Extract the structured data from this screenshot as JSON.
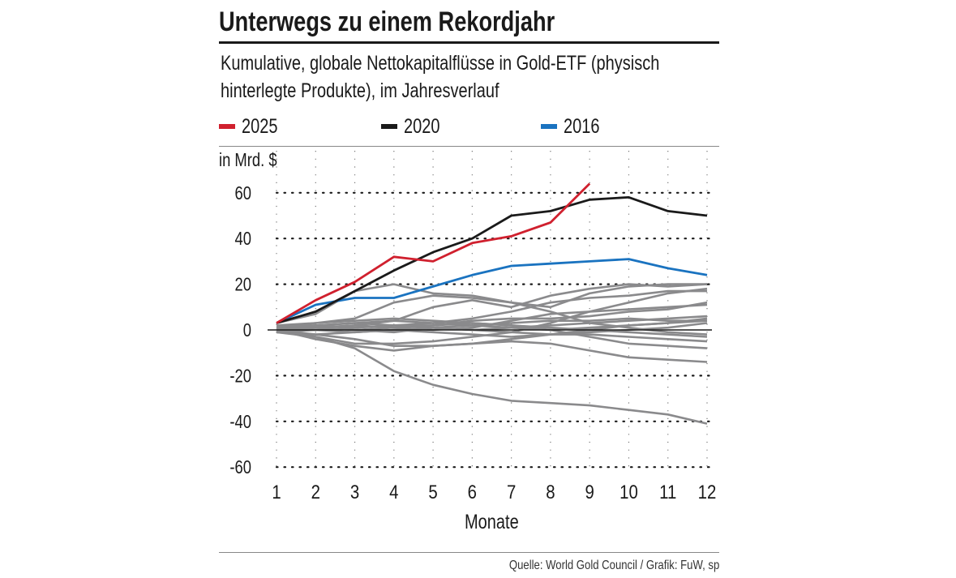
{
  "colors": {
    "2025": "#d0202e",
    "2020": "#1a1a1a",
    "2016": "#1a73c0",
    "other": "#8a8a8c"
  },
  "chart_data": {
    "type": "line",
    "title": "Unterwegs zu einem Rekordjahr",
    "subtitle_line1": "Kumulative, globale Nettokapitalflüsse in Gold-ETF (physisch",
    "subtitle_line2": "hinterlegte Produkte), im Jahresverlauf",
    "ylabel": "in Mrd. $",
    "xlabel": "Monate",
    "x": [
      1,
      2,
      3,
      4,
      5,
      6,
      7,
      8,
      9,
      10,
      11,
      12
    ],
    "xticks": [
      "1",
      "2",
      "3",
      "4",
      "5",
      "6",
      "7",
      "8",
      "9",
      "10",
      "11",
      "12"
    ],
    "yticks": [
      "60",
      "40",
      "20",
      "0",
      "-20",
      "-40",
      "-60"
    ],
    "ylim": [
      -60,
      60
    ],
    "grid": "dotted",
    "legend_placement": "top",
    "legend": [
      "2025",
      "2020",
      "2016"
    ],
    "series": [
      {
        "name": "2025",
        "color": "#d0202e",
        "values": [
          3,
          13,
          21,
          32,
          30,
          38,
          41,
          47,
          64,
          null,
          null,
          null
        ]
      },
      {
        "name": "2020",
        "color": "#1a1a1a",
        "values": [
          3,
          8,
          17,
          26,
          34,
          40,
          50,
          52,
          57,
          58,
          52,
          50
        ]
      },
      {
        "name": "2016",
        "color": "#1a73c0",
        "values": [
          3,
          11,
          14,
          14,
          19,
          24,
          28,
          29,
          30,
          31,
          27,
          24
        ]
      }
    ],
    "other_years": [
      [
        3,
        7,
        17,
        20,
        16,
        15,
        12,
        8,
        3,
        1,
        -1,
        -2
      ],
      [
        1,
        -3,
        -8,
        -18,
        -24,
        -28,
        -31,
        -32,
        -33,
        -35,
        -37,
        -41
      ],
      [
        0,
        -4,
        -7,
        -9,
        -7,
        -6,
        -4,
        -2,
        0,
        2,
        3,
        5
      ],
      [
        1,
        3,
        5,
        12,
        15,
        14,
        12,
        10,
        16,
        19,
        20,
        20
      ],
      [
        0,
        1,
        2,
        4,
        10,
        13,
        10,
        15,
        18,
        20,
        19,
        20
      ],
      [
        -1,
        -3,
        -6,
        -6,
        -5,
        -3,
        -1,
        3,
        8,
        12,
        16,
        18
      ],
      [
        1,
        2,
        1,
        2,
        3,
        5,
        8,
        12,
        14,
        15,
        17,
        17
      ],
      [
        2,
        3,
        4,
        5,
        4,
        3,
        2,
        0,
        -3,
        -6,
        -7,
        -8
      ],
      [
        0,
        -2,
        -4,
        -7,
        -7,
        -6,
        -5,
        -6,
        -9,
        -12,
        -13,
        -14
      ],
      [
        1,
        1,
        2,
        1,
        0,
        1,
        4,
        7,
        8,
        9,
        10,
        11
      ],
      [
        -1,
        0,
        1,
        2,
        2,
        4,
        5,
        5,
        6,
        8,
        9,
        12
      ],
      [
        2,
        2,
        3,
        2,
        1,
        0,
        1,
        2,
        3,
        4,
        5,
        6
      ],
      [
        0,
        1,
        0,
        -1,
        1,
        2,
        1,
        0,
        1,
        2,
        3,
        4
      ],
      [
        1,
        0,
        -1,
        0,
        1,
        0,
        -1,
        -2,
        -2,
        -3,
        -4,
        -5
      ],
      [
        -1,
        -2,
        -1,
        0,
        -1,
        -2,
        -3,
        -2,
        -1,
        0,
        1,
        3
      ],
      [
        0,
        2,
        3,
        4,
        3,
        2,
        3,
        4,
        4,
        5,
        4,
        4
      ],
      [
        2,
        1,
        0,
        1,
        2,
        3,
        2,
        1,
        0,
        -1,
        -2,
        -3
      ]
    ]
  },
  "source": "Quelle: World Gold Council / Grafik: FuW, sp"
}
